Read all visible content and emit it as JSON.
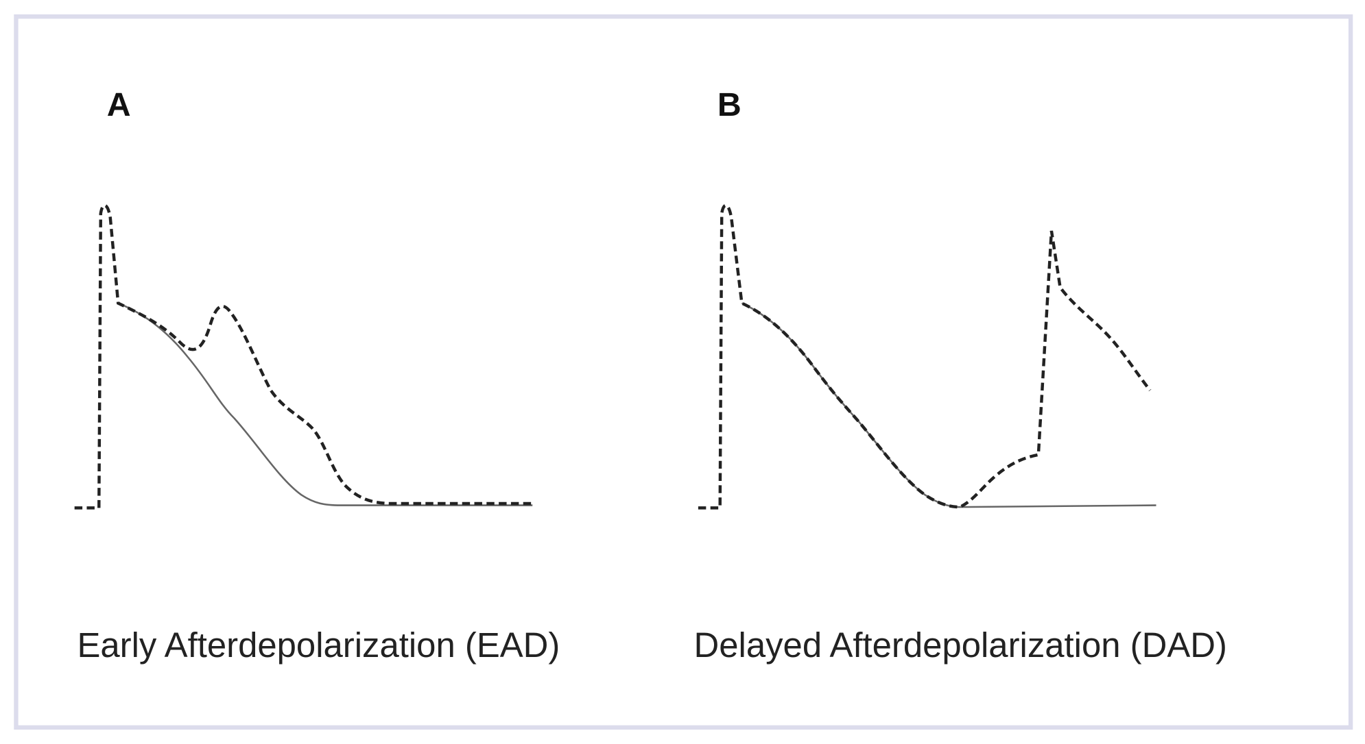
{
  "panels": [
    {
      "label": "A",
      "caption": "Early Afterdepolarization (EAD)"
    },
    {
      "label": "B",
      "caption": "Delayed Afterdepolarization (DAD)"
    }
  ]
}
